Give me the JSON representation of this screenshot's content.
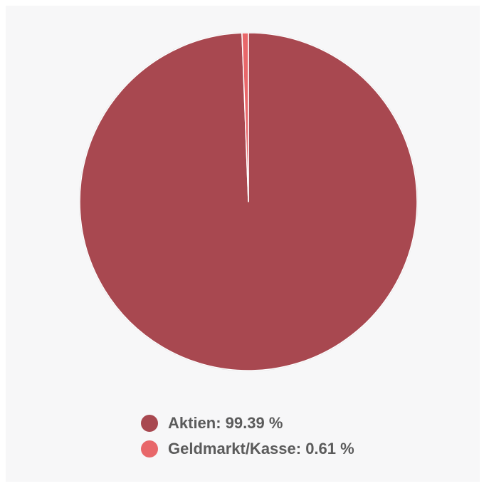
{
  "chart_data": {
    "type": "pie",
    "slices": [
      {
        "label": "Aktien",
        "value": 99.39,
        "color": "#a84850"
      },
      {
        "label": "Geldmarkt/Kasse",
        "value": 0.61,
        "color": "#e8676a"
      }
    ],
    "legend": [
      {
        "text": "Aktien: 99.39 %",
        "color": "#a84850"
      },
      {
        "text": "Geldmarkt/Kasse: 0.61 %",
        "color": "#e8676a"
      }
    ],
    "legend_placement": "bottom"
  }
}
